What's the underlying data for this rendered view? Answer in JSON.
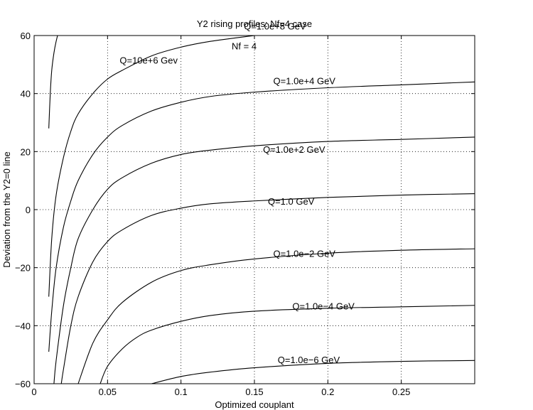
{
  "chart_data": {
    "type": "line",
    "title": "Y2 rising profiles: Nf=4 case",
    "subtitle_annotation": "Nf = 4",
    "xlabel": "Optimized couplant",
    "ylabel": "Deviation from the Y2=0 line",
    "xlim": [
      0,
      0.3
    ],
    "ylim": [
      -60,
      60
    ],
    "xticks": [
      0,
      0.05,
      0.1,
      0.15,
      0.2,
      0.25
    ],
    "xtick_labels": [
      "0",
      "0.05",
      "0.1",
      "0.15",
      "0.2",
      "0.25"
    ],
    "yticks": [
      -60,
      -40,
      -20,
      0,
      20,
      40,
      60
    ],
    "ytick_labels": [
      "−60",
      "−40",
      "−20",
      "0",
      "20",
      "40",
      "60"
    ],
    "grid": true,
    "series": [
      {
        "name": "Q=1.0e+8 GeV",
        "x": [
          0.01,
          0.011,
          0.012,
          0.0135,
          0.015,
          0.017
        ],
        "y": [
          28,
          40,
          48,
          54,
          58,
          62
        ]
      },
      {
        "name": "Q=10e+6 Gev",
        "x": [
          0.01,
          0.012,
          0.015,
          0.02,
          0.025,
          0.03,
          0.04,
          0.05,
          0.06,
          0.08,
          0.1,
          0.12,
          0.15
        ],
        "y": [
          -30,
          -10,
          5,
          18,
          27,
          33,
          40,
          45,
          48,
          53,
          56,
          58,
          60
        ]
      },
      {
        "name": "Q=1.0e+4 GeV",
        "x": [
          0.01,
          0.012,
          0.015,
          0.02,
          0.025,
          0.03,
          0.04,
          0.05,
          0.06,
          0.08,
          0.1,
          0.12,
          0.15,
          0.2,
          0.25,
          0.3
        ],
        "y": [
          -49,
          -35,
          -20,
          -6,
          3,
          10,
          19,
          25,
          29,
          34,
          37,
          39,
          40.5,
          42,
          43,
          44
        ]
      },
      {
        "name": "Q=1.0e+2 GeV",
        "x": [
          0.0135,
          0.015,
          0.02,
          0.025,
          0.03,
          0.04,
          0.05,
          0.06,
          0.08,
          0.1,
          0.12,
          0.15,
          0.2,
          0.25,
          0.3
        ],
        "y": [
          -60,
          -52,
          -33,
          -20,
          -10,
          0,
          7,
          11,
          16,
          19,
          20.5,
          22,
          23.5,
          24.2,
          25
        ]
      },
      {
        "name": "Q=1.0 GeV",
        "x": [
          0.0185,
          0.02,
          0.025,
          0.03,
          0.04,
          0.05,
          0.06,
          0.08,
          0.1,
          0.12,
          0.15,
          0.2,
          0.25,
          0.3
        ],
        "y": [
          -60,
          -55,
          -40,
          -30,
          -18,
          -11,
          -7,
          -2,
          0.5,
          2,
          3,
          4.2,
          5,
          5.5
        ]
      },
      {
        "name": "Q=1.0e−2 GeV",
        "x": [
          0.03,
          0.04,
          0.05,
          0.06,
          0.08,
          0.1,
          0.12,
          0.15,
          0.2,
          0.25,
          0.3
        ],
        "y": [
          -60,
          -46,
          -38,
          -32,
          -25,
          -21,
          -19,
          -17,
          -15,
          -14,
          -13.5
        ]
      },
      {
        "name": "Q=1.0e−4 GeV",
        "x": [
          0.045,
          0.05,
          0.06,
          0.07,
          0.08,
          0.1,
          0.12,
          0.15,
          0.2,
          0.25,
          0.3
        ],
        "y": [
          -60,
          -54,
          -48,
          -44,
          -41.5,
          -38.5,
          -36.5,
          -35,
          -34,
          -33.5,
          -33
        ]
      },
      {
        "name": "Q=1.0e−6 GeV",
        "x": [
          0.08,
          0.1,
          0.12,
          0.15,
          0.2,
          0.25,
          0.3
        ],
        "y": [
          -60,
          -57.5,
          -56,
          -54.5,
          -53,
          -52.3,
          -52
        ]
      }
    ],
    "annotations": [
      {
        "text": "Q=1.0e+8 GeV",
        "x": 0.164,
        "y": 63.3
      },
      {
        "text": "Q=10e+6 Gev",
        "x": 0.078,
        "y": 51.5
      },
      {
        "text": "Nf = 4",
        "x": 0.143,
        "y": 56.4
      },
      {
        "text": "Q=1.0e+4 GeV",
        "x": 0.184,
        "y": 44.5
      },
      {
        "text": "Q=1.0e+2 GeV",
        "x": 0.177,
        "y": 20.8
      },
      {
        "text": "Q=1.0 GeV",
        "x": 0.175,
        "y": 2.9
      },
      {
        "text": "Q=1.0e−2 GeV",
        "x": 0.184,
        "y": -15.1
      },
      {
        "text": "Q=1.0e−4 GeV",
        "x": 0.197,
        "y": -33.2
      },
      {
        "text": "Q=1.0e−6 GeV",
        "x": 0.187,
        "y": -51.7
      }
    ]
  }
}
